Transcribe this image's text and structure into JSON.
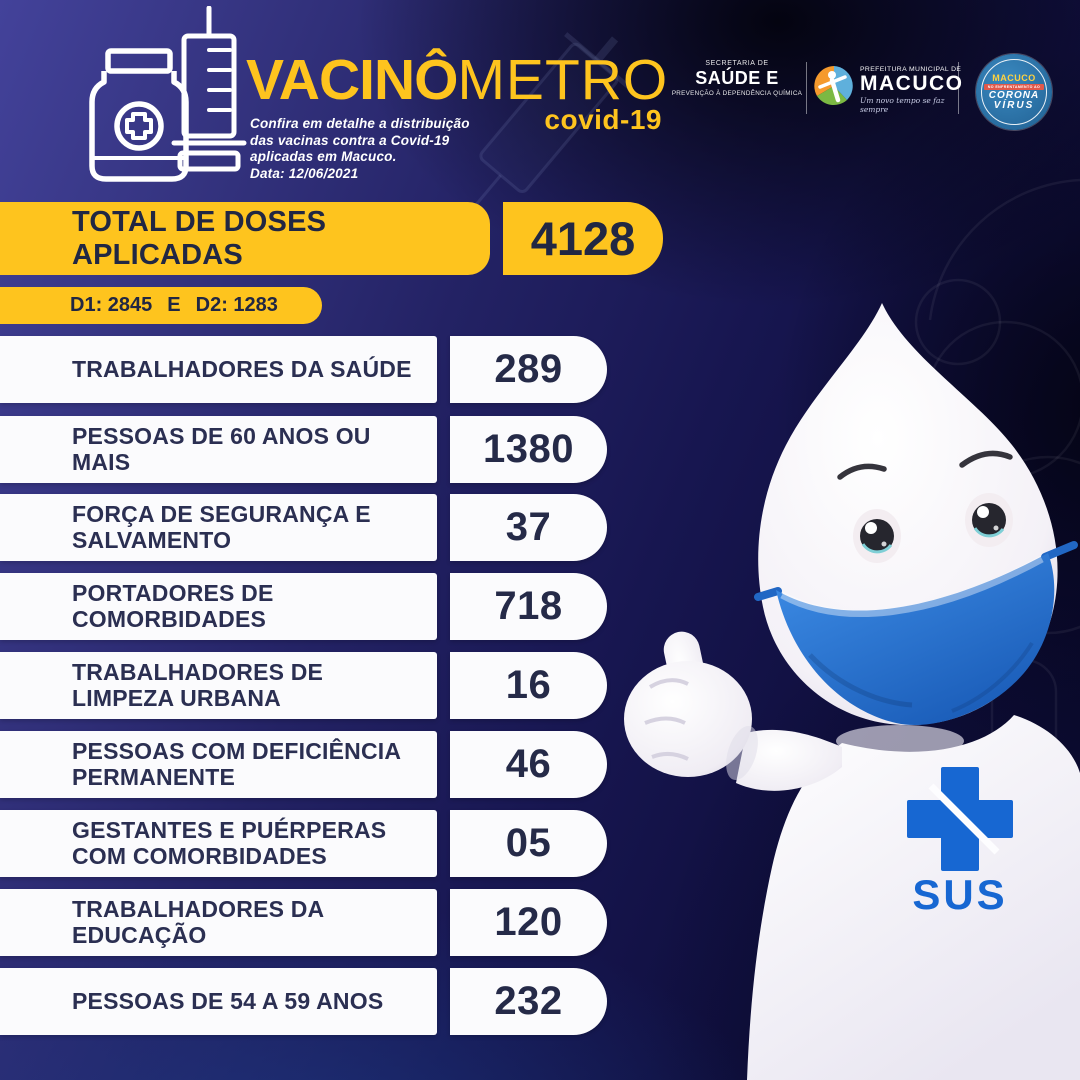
{
  "header": {
    "title": {
      "bold": "VACINÔ",
      "light": "METRO",
      "badge": "covid-19"
    },
    "description": [
      "Confira em detalhe a distribuição",
      "das vacinas contra a Covid-19",
      "aplicadas em Macuco.",
      "Data: 12/06/2021"
    ],
    "secretaria_logo": {
      "top": "SECRETARIA DE",
      "main": "SAÚDE E",
      "bottom": "PREVENÇÃO À DEPENDÊNCIA QUÍMICA"
    },
    "prefeitura_logo": {
      "top": "PREFEITURA MUNICIPAL DE",
      "main": "MACUCO",
      "tagline": "Um novo tempo se faz sempre"
    },
    "corona_badge": {
      "line1": "MACUCO",
      "line2": "NO ENFRENTAMENTO AO",
      "line3": "CORONA",
      "line4": "VÍRUS"
    }
  },
  "totals": {
    "label": "TOTAL DE DOSES APLICADAS",
    "value": "4128",
    "d1": "D1: 2845",
    "conjunction": "E",
    "d2": "D2: 1283"
  },
  "rows": [
    {
      "lines": [
        "TRABALHADORES DA SAÚDE"
      ],
      "value": "289"
    },
    {
      "lines": [
        "PESSOAS DE 60 ANOS OU MAIS"
      ],
      "value": "1380"
    },
    {
      "lines": [
        "FORÇA DE SEGURANÇA E",
        "SALVAMENTO"
      ],
      "value": "37"
    },
    {
      "lines": [
        "PORTADORES DE",
        "COMORBIDADES"
      ],
      "value": "718"
    },
    {
      "lines": [
        "TRABALHADORES DE",
        "LIMPEZA URBANA"
      ],
      "value": "16"
    },
    {
      "lines": [
        "PESSOAS COM DEFICIÊNCIA",
        "PERMANENTE"
      ],
      "value": "46"
    },
    {
      "lines": [
        "GESTANTES E PUÉRPERAS",
        "COM COMORBIDADES"
      ],
      "value": "05"
    },
    {
      "lines": [
        "TRABALHADORES DA",
        "EDUCAÇÃO"
      ],
      "value": "120"
    },
    {
      "lines": [
        "PESSOAS DE 54 A 59 ANOS"
      ],
      "value": "232"
    }
  ],
  "mascot": {
    "shirt_label": "SUS"
  },
  "colors": {
    "accent_yellow": "#fec41e",
    "background_navy": "#1b1a54",
    "box_white": "#fbfbfd",
    "box_text": "#2b2f52",
    "mask_blue": "#2676d9",
    "sus_blue": "#1767d2",
    "badge_blue": "#2d7cb4",
    "badge_band_red": "#e1584a"
  }
}
